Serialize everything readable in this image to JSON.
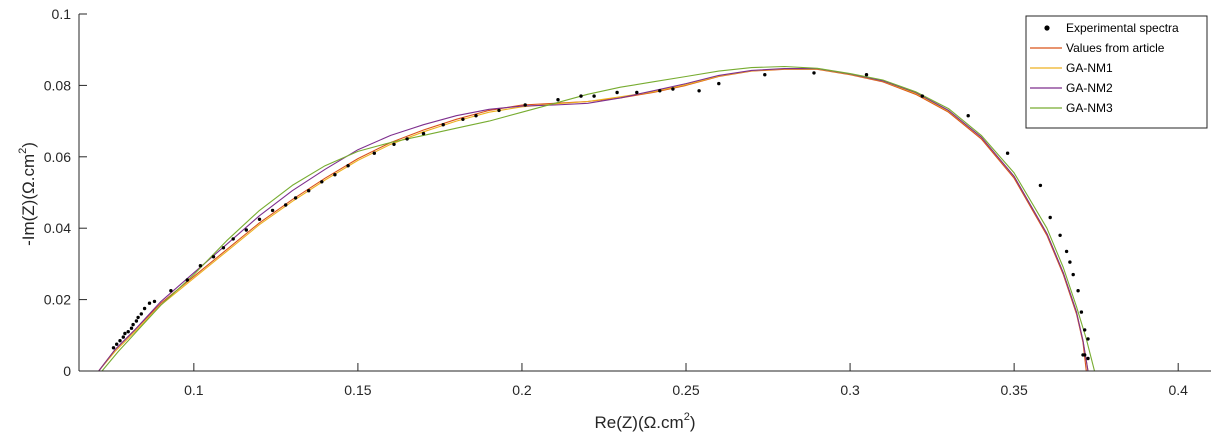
{
  "chart_data": {
    "type": "line",
    "xlabel": "Re(Z)(Ω.cm",
    "xlabel_sup": "2",
    "xlabel_suffix": ")",
    "ylabel": "-Im(Z)(Ω.cm",
    "ylabel_sup": "2",
    "ylabel_suffix": ")",
    "xlim": [
      0.065,
      0.41
    ],
    "ylim": [
      0,
      0.1
    ],
    "xticks": [
      0.1,
      0.15,
      0.2,
      0.25,
      0.3,
      0.35,
      0.4
    ],
    "xtick_labels": [
      "0.1",
      "0.15",
      "0.2",
      "0.25",
      "0.3",
      "0.35",
      "0.4"
    ],
    "yticks": [
      0,
      0.02,
      0.04,
      0.06,
      0.08,
      0.1
    ],
    "ytick_labels": [
      "0",
      "0.02",
      "0.04",
      "0.06",
      "0.08",
      "0.1"
    ],
    "grid": false,
    "legend_position": "top-right",
    "series": [
      {
        "name": "Experimental spectra",
        "kind": "points",
        "color": "#000000",
        "points": [
          [
            0.0755,
            0.0065
          ],
          [
            0.0765,
            0.0075
          ],
          [
            0.0775,
            0.0085
          ],
          [
            0.0785,
            0.0095
          ],
          [
            0.079,
            0.0105
          ],
          [
            0.08,
            0.011
          ],
          [
            0.081,
            0.012
          ],
          [
            0.0815,
            0.013
          ],
          [
            0.0825,
            0.014
          ],
          [
            0.083,
            0.015
          ],
          [
            0.084,
            0.016
          ],
          [
            0.085,
            0.0175
          ],
          [
            0.0865,
            0.019
          ],
          [
            0.088,
            0.0195
          ],
          [
            0.093,
            0.0225
          ],
          [
            0.098,
            0.0255
          ],
          [
            0.102,
            0.0295
          ],
          [
            0.106,
            0.032
          ],
          [
            0.109,
            0.0345
          ],
          [
            0.112,
            0.037
          ],
          [
            0.116,
            0.0395
          ],
          [
            0.12,
            0.0425
          ],
          [
            0.124,
            0.045
          ],
          [
            0.128,
            0.0465
          ],
          [
            0.131,
            0.0485
          ],
          [
            0.135,
            0.0505
          ],
          [
            0.139,
            0.053
          ],
          [
            0.143,
            0.055
          ],
          [
            0.147,
            0.0575
          ],
          [
            0.155,
            0.061
          ],
          [
            0.161,
            0.0635
          ],
          [
            0.165,
            0.065
          ],
          [
            0.17,
            0.0665
          ],
          [
            0.176,
            0.069
          ],
          [
            0.182,
            0.0705
          ],
          [
            0.186,
            0.0715
          ],
          [
            0.193,
            0.073
          ],
          [
            0.201,
            0.0745
          ],
          [
            0.211,
            0.076
          ],
          [
            0.218,
            0.077
          ],
          [
            0.222,
            0.077
          ],
          [
            0.229,
            0.078
          ],
          [
            0.235,
            0.078
          ],
          [
            0.242,
            0.0785
          ],
          [
            0.246,
            0.079
          ],
          [
            0.254,
            0.0785
          ],
          [
            0.26,
            0.0805
          ],
          [
            0.274,
            0.083
          ],
          [
            0.289,
            0.0835
          ],
          [
            0.305,
            0.083
          ],
          [
            0.322,
            0.077
          ],
          [
            0.336,
            0.0715
          ],
          [
            0.348,
            0.061
          ],
          [
            0.358,
            0.052
          ],
          [
            0.361,
            0.043
          ],
          [
            0.364,
            0.038
          ],
          [
            0.366,
            0.0335
          ],
          [
            0.367,
            0.0305
          ],
          [
            0.368,
            0.027
          ],
          [
            0.3695,
            0.0225
          ],
          [
            0.3705,
            0.0165
          ],
          [
            0.3715,
            0.0115
          ],
          [
            0.3715,
            0.0045
          ],
          [
            0.3725,
            0.0035
          ],
          [
            0.371,
            0.0045
          ],
          [
            0.3725,
            0.009
          ]
        ]
      },
      {
        "name": "Values from article",
        "kind": "line",
        "color": "#D95319",
        "points": [
          [
            0.071,
            0
          ],
          [
            0.076,
            0.006
          ],
          [
            0.082,
            0.0115
          ],
          [
            0.09,
            0.019
          ],
          [
            0.1,
            0.0265
          ],
          [
            0.11,
            0.034
          ],
          [
            0.12,
            0.0415
          ],
          [
            0.13,
            0.048
          ],
          [
            0.14,
            0.054
          ],
          [
            0.15,
            0.0595
          ],
          [
            0.16,
            0.064
          ],
          [
            0.17,
            0.0675
          ],
          [
            0.18,
            0.0705
          ],
          [
            0.19,
            0.073
          ],
          [
            0.2,
            0.0745
          ],
          [
            0.21,
            0.075
          ],
          [
            0.22,
            0.0755
          ],
          [
            0.23,
            0.0765
          ],
          [
            0.24,
            0.078
          ],
          [
            0.25,
            0.08
          ],
          [
            0.26,
            0.0825
          ],
          [
            0.27,
            0.084
          ],
          [
            0.28,
            0.0845
          ],
          [
            0.29,
            0.0845
          ],
          [
            0.3,
            0.083
          ],
          [
            0.31,
            0.081
          ],
          [
            0.32,
            0.0775
          ],
          [
            0.33,
            0.0725
          ],
          [
            0.34,
            0.065
          ],
          [
            0.35,
            0.054
          ],
          [
            0.36,
            0.038
          ],
          [
            0.365,
            0.027
          ],
          [
            0.369,
            0.016
          ],
          [
            0.371,
            0.008
          ],
          [
            0.372,
            0
          ]
        ]
      },
      {
        "name": "GA-NM1",
        "kind": "line",
        "color": "#EDB120",
        "points": [
          [
            0.071,
            0
          ],
          [
            0.076,
            0.0055
          ],
          [
            0.082,
            0.011
          ],
          [
            0.09,
            0.0185
          ],
          [
            0.1,
            0.026
          ],
          [
            0.11,
            0.0335
          ],
          [
            0.12,
            0.041
          ],
          [
            0.13,
            0.0475
          ],
          [
            0.14,
            0.0535
          ],
          [
            0.15,
            0.059
          ],
          [
            0.16,
            0.0635
          ],
          [
            0.17,
            0.067
          ],
          [
            0.18,
            0.07
          ],
          [
            0.19,
            0.0725
          ],
          [
            0.2,
            0.074
          ],
          [
            0.21,
            0.0748
          ],
          [
            0.22,
            0.0755
          ],
          [
            0.23,
            0.0768
          ],
          [
            0.24,
            0.0782
          ],
          [
            0.25,
            0.0802
          ],
          [
            0.26,
            0.0826
          ],
          [
            0.27,
            0.0841
          ],
          [
            0.28,
            0.0846
          ],
          [
            0.29,
            0.0846
          ],
          [
            0.3,
            0.0831
          ],
          [
            0.31,
            0.0812
          ],
          [
            0.32,
            0.0778
          ],
          [
            0.33,
            0.0728
          ],
          [
            0.34,
            0.0655
          ],
          [
            0.35,
            0.0545
          ],
          [
            0.36,
            0.0385
          ],
          [
            0.365,
            0.0275
          ],
          [
            0.369,
            0.0165
          ],
          [
            0.371,
            0.0085
          ],
          [
            0.3725,
            0
          ]
        ]
      },
      {
        "name": "GA-NM2",
        "kind": "line",
        "color": "#7E2F8E",
        "points": [
          [
            0.071,
            0
          ],
          [
            0.076,
            0.006
          ],
          [
            0.082,
            0.0115
          ],
          [
            0.09,
            0.0195
          ],
          [
            0.1,
            0.0275
          ],
          [
            0.11,
            0.0355
          ],
          [
            0.12,
            0.0435
          ],
          [
            0.13,
            0.0505
          ],
          [
            0.14,
            0.0565
          ],
          [
            0.15,
            0.062
          ],
          [
            0.16,
            0.066
          ],
          [
            0.17,
            0.069
          ],
          [
            0.18,
            0.0715
          ],
          [
            0.19,
            0.0733
          ],
          [
            0.2,
            0.0742
          ],
          [
            0.21,
            0.0745
          ],
          [
            0.22,
            0.075
          ],
          [
            0.23,
            0.0765
          ],
          [
            0.24,
            0.0785
          ],
          [
            0.25,
            0.0805
          ],
          [
            0.26,
            0.0828
          ],
          [
            0.27,
            0.0842
          ],
          [
            0.28,
            0.0847
          ],
          [
            0.29,
            0.0847
          ],
          [
            0.3,
            0.0832
          ],
          [
            0.31,
            0.0813
          ],
          [
            0.32,
            0.078
          ],
          [
            0.33,
            0.073
          ],
          [
            0.34,
            0.0655
          ],
          [
            0.35,
            0.0545
          ],
          [
            0.36,
            0.0385
          ],
          [
            0.365,
            0.0275
          ],
          [
            0.369,
            0.0165
          ],
          [
            0.371,
            0.0085
          ],
          [
            0.3725,
            0
          ]
        ]
      },
      {
        "name": "GA-NM3",
        "kind": "line",
        "color": "#77AC30",
        "points": [
          [
            0.072,
            0
          ],
          [
            0.077,
            0.0055
          ],
          [
            0.083,
            0.0115
          ],
          [
            0.09,
            0.0185
          ],
          [
            0.1,
            0.027
          ],
          [
            0.11,
            0.0365
          ],
          [
            0.12,
            0.045
          ],
          [
            0.13,
            0.052
          ],
          [
            0.14,
            0.0575
          ],
          [
            0.15,
            0.0615
          ],
          [
            0.16,
            0.064
          ],
          [
            0.17,
            0.066
          ],
          [
            0.18,
            0.068
          ],
          [
            0.19,
            0.07
          ],
          [
            0.2,
            0.0725
          ],
          [
            0.21,
            0.075
          ],
          [
            0.22,
            0.0775
          ],
          [
            0.23,
            0.0795
          ],
          [
            0.24,
            0.081
          ],
          [
            0.25,
            0.0825
          ],
          [
            0.26,
            0.084
          ],
          [
            0.27,
            0.085
          ],
          [
            0.28,
            0.0853
          ],
          [
            0.29,
            0.0848
          ],
          [
            0.3,
            0.0833
          ],
          [
            0.31,
            0.0815
          ],
          [
            0.32,
            0.0782
          ],
          [
            0.33,
            0.0735
          ],
          [
            0.34,
            0.066
          ],
          [
            0.35,
            0.0555
          ],
          [
            0.36,
            0.04
          ],
          [
            0.365,
            0.029
          ],
          [
            0.369,
            0.018
          ],
          [
            0.372,
            0.009
          ],
          [
            0.3745,
            0
          ]
        ]
      }
    ]
  }
}
